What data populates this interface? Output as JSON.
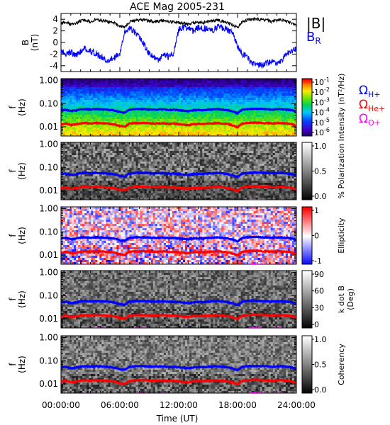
{
  "title": "ACE Mag 2005-231",
  "xaxis": {
    "label": "Time (UT)",
    "range_hours": [
      0,
      24
    ],
    "ticks": [
      {
        "value": 0,
        "label": "00:00:00"
      },
      {
        "value": 6,
        "label": "06:00:00"
      },
      {
        "value": 12,
        "label": "12:00:00"
      },
      {
        "value": 18,
        "label": "18:00:00"
      },
      {
        "value": 24,
        "label": "24:00:00"
      }
    ]
  },
  "colors": {
    "H": "#0000ff",
    "He": "#ff0000",
    "O": "#ff00ff",
    "B_total": "#000000",
    "B_R": "#0000ff"
  },
  "chart_data": [
    {
      "type": "line",
      "ylabel": [
        "B",
        "(nT)"
      ],
      "ylim": [
        -5,
        5
      ],
      "yticks": [
        {
          "value": 4,
          "label": "4"
        },
        {
          "value": 2,
          "label": "2"
        },
        {
          "value": 0,
          "label": "0"
        },
        {
          "value": -2,
          "label": "-2"
        },
        {
          "value": -4,
          "label": "-4"
        }
      ],
      "legend": [
        {
          "name": "|B|",
          "color": "#000000"
        },
        {
          "name": "B",
          "sub": "R",
          "color": "#0000ff"
        }
      ],
      "series": [
        {
          "name": "|B|",
          "color": "#000000",
          "x": [
            0,
            0.5,
            1,
            1.5,
            2,
            2.5,
            3,
            3.5,
            4,
            4.5,
            5,
            5.5,
            6,
            6.5,
            7,
            7.5,
            8,
            8.5,
            9,
            9.5,
            10,
            10.5,
            11,
            11.5,
            12,
            12.5,
            13,
            13.5,
            14,
            14.5,
            15,
            15.5,
            16,
            16.5,
            17,
            17.5,
            18,
            18.5,
            19,
            19.5,
            20,
            20.5,
            21,
            21.5,
            22,
            22.5,
            23,
            23.5,
            24
          ],
          "y": [
            3.2,
            3.6,
            3.1,
            3.3,
            3.7,
            3.9,
            3.6,
            3.9,
            3.8,
            3.7,
            3.5,
            3.3,
            2.8,
            2.6,
            3.6,
            3.8,
            3.9,
            3.9,
            3.7,
            3.6,
            3.7,
            3.8,
            3.5,
            3.6,
            3.4,
            3.3,
            3.1,
            3.4,
            3.5,
            3.4,
            3.6,
            3.7,
            3.9,
            3.6,
            3.4,
            3.0,
            2.5,
            3.6,
            3.9,
            4.0,
            4.0,
            3.9,
            3.9,
            3.6,
            3.8,
            3.9,
            3.6,
            3.4,
            2.8
          ]
        },
        {
          "name": "B_R",
          "color": "#0000ff",
          "x": [
            0,
            0.5,
            1,
            1.5,
            2,
            2.5,
            3,
            3.5,
            4,
            4.5,
            5,
            5.5,
            6,
            6.5,
            7,
            7.5,
            8,
            8.5,
            9,
            9.5,
            10,
            10.5,
            11,
            11.5,
            12,
            12.5,
            13,
            13.5,
            14,
            14.5,
            15,
            15.5,
            16,
            16.5,
            17,
            17.5,
            18,
            18.5,
            19,
            19.5,
            20,
            20.5,
            21,
            21.5,
            22,
            22.5,
            23,
            23.5,
            24
          ],
          "y": [
            -1.5,
            -2.0,
            -1.6,
            -2.2,
            -1.5,
            -1.0,
            -1.5,
            -1.8,
            -2.4,
            -3.0,
            -3.0,
            -2.5,
            -2.0,
            2.0,
            2.5,
            1.8,
            1.0,
            -0.4,
            -2.0,
            -2.6,
            -3.0,
            -2.0,
            -2.5,
            -1.8,
            2.2,
            2.6,
            2.4,
            2.0,
            2.6,
            2.3,
            2.5,
            2.1,
            2.8,
            2.5,
            2.2,
            1.6,
            -0.5,
            -2.0,
            -2.5,
            -3.6,
            -3.9,
            -4.0,
            -3.6,
            -3.2,
            -3.6,
            -3.0,
            -2.0,
            -1.5,
            -1.0
          ]
        }
      ]
    },
    {
      "type": "heatmap",
      "ylabel": [
        "f",
        "(Hz)"
      ],
      "ylim": [
        0.004,
        1.2
      ],
      "yscale": "log",
      "yticks": [
        {
          "value": 1,
          "label": "1.00"
        },
        {
          "value": 0.1,
          "label": "0.10"
        },
        {
          "value": 0.01,
          "label": "0.01"
        }
      ],
      "colorbar": {
        "label": "Intensity (nT²/Hz)",
        "colormap": "rainbow",
        "ticks": [
          {
            "label": "10",
            "exp": "-1"
          },
          {
            "label": "10",
            "exp": "-2"
          },
          {
            "label": "10",
            "exp": "-3"
          },
          {
            "label": "10",
            "exp": "-4"
          },
          {
            "label": "10",
            "exp": "-5"
          },
          {
            "label": "10",
            "exp": "-6"
          }
        ]
      },
      "legend": [
        {
          "name": "Ω",
          "sub": "H+",
          "color": "#0000ff"
        },
        {
          "name": "Ω",
          "sub": "He+",
          "color": "#ff0000"
        },
        {
          "name": "Ω",
          "sub": "O+",
          "color": "#ff00ff"
        }
      ]
    },
    {
      "type": "heatmap",
      "ylabel": [
        "f",
        "(Hz)"
      ],
      "ylim": [
        0.004,
        1.2
      ],
      "yscale": "log",
      "yticks": [
        {
          "value": 1,
          "label": "1.00"
        },
        {
          "value": 0.1,
          "label": "0.10"
        },
        {
          "value": 0.01,
          "label": "0.01"
        }
      ],
      "colorbar": {
        "label": "% Polarization",
        "colormap": "gray",
        "ticks": [
          {
            "label": "1.0"
          },
          {
            "label": "0.5"
          },
          {
            "label": "0.0"
          }
        ]
      }
    },
    {
      "type": "heatmap",
      "ylabel": [
        "f",
        "(Hz)"
      ],
      "ylim": [
        0.004,
        1.2
      ],
      "yscale": "log",
      "yticks": [
        {
          "value": 1,
          "label": "1.00"
        },
        {
          "value": 0.1,
          "label": "0.10"
        },
        {
          "value": 0.01,
          "label": "0.01"
        }
      ],
      "colorbar": {
        "label": "Ellipticity",
        "colormap": "bwr",
        "ticks": [
          {
            "label": "1"
          },
          {
            "label": "0"
          },
          {
            "label": "-1"
          }
        ]
      }
    },
    {
      "type": "heatmap",
      "ylabel": [
        "f",
        "(Hz)"
      ],
      "ylim": [
        0.004,
        1.2
      ],
      "yscale": "log",
      "yticks": [
        {
          "value": 1,
          "label": "1.00"
        },
        {
          "value": 0.1,
          "label": "0.10"
        },
        {
          "value": 0.01,
          "label": "0.01"
        }
      ],
      "colorbar": {
        "label": "k dot B",
        "label2": "(Deg)",
        "colormap": "gray",
        "ticks": [
          {
            "label": "90"
          },
          {
            "label": "60"
          },
          {
            "label": "30"
          },
          {
            "label": "0"
          }
        ]
      }
    },
    {
      "type": "heatmap",
      "ylabel": [
        "f",
        "(Hz)"
      ],
      "ylim": [
        0.004,
        1.2
      ],
      "yscale": "log",
      "yticks": [
        {
          "value": 1,
          "label": "1.00"
        },
        {
          "value": 0.1,
          "label": "0.10"
        },
        {
          "value": 0.01,
          "label": "0.01"
        }
      ],
      "colorbar": {
        "label": "Coherency",
        "colormap": "gray",
        "ticks": [
          {
            "label": "1.0"
          },
          {
            "label": "0.5"
          },
          {
            "label": "0.0"
          }
        ]
      }
    }
  ],
  "gyrofrequency": {
    "x": [
      0,
      0.5,
      1,
      1.5,
      2,
      2.5,
      3,
      3.5,
      4,
      4.5,
      5,
      5.5,
      6,
      6.5,
      7,
      7.5,
      8,
      8.5,
      9,
      9.5,
      10,
      10.5,
      11,
      11.5,
      12,
      12.5,
      13,
      13.5,
      14,
      14.5,
      15,
      15.5,
      16,
      16.5,
      17,
      17.5,
      18,
      18.5,
      19,
      19.5,
      20,
      20.5,
      21,
      21.5,
      22,
      22.5,
      23,
      23.5,
      24
    ],
    "H": [
      0.05,
      0.055,
      0.048,
      0.05,
      0.056,
      0.058,
      0.055,
      0.058,
      0.057,
      0.056,
      0.053,
      0.05,
      0.043,
      0.04,
      0.055,
      0.057,
      0.058,
      0.058,
      0.056,
      0.055,
      0.056,
      0.057,
      0.053,
      0.055,
      0.052,
      0.05,
      0.047,
      0.052,
      0.053,
      0.052,
      0.055,
      0.056,
      0.058,
      0.055,
      0.052,
      0.046,
      0.038,
      0.055,
      0.058,
      0.06,
      0.06,
      0.058,
      0.058,
      0.055,
      0.057,
      0.058,
      0.055,
      0.052,
      0.043
    ],
    "He": [
      0.0125,
      0.0138,
      0.012,
      0.0125,
      0.014,
      0.0145,
      0.0138,
      0.0145,
      0.0143,
      0.014,
      0.0133,
      0.0125,
      0.0108,
      0.01,
      0.0138,
      0.0143,
      0.0145,
      0.0145,
      0.014,
      0.0138,
      0.014,
      0.0143,
      0.0133,
      0.0138,
      0.013,
      0.0125,
      0.0118,
      0.013,
      0.0133,
      0.013,
      0.0138,
      0.014,
      0.0145,
      0.0138,
      0.013,
      0.0115,
      0.0095,
      0.0138,
      0.0145,
      0.015,
      0.015,
      0.0145,
      0.0145,
      0.0138,
      0.0143,
      0.0145,
      0.0138,
      0.013,
      0.0108
    ],
    "O": [
      0.0031,
      0.0034,
      0.003,
      0.0031,
      0.0035,
      0.0036,
      0.0034,
      0.0036,
      0.0036,
      0.0035,
      0.0033,
      0.0031,
      0.0027,
      0.0025,
      0.0034,
      0.0036,
      0.0036,
      0.0036,
      0.0035,
      0.0034,
      0.0035,
      0.0036,
      0.0033,
      0.0034,
      0.0033,
      0.0031,
      0.003,
      0.0033,
      0.0033,
      0.0033,
      0.0034,
      0.0035,
      0.0036,
      0.0034,
      0.0033,
      0.0029,
      0.0024,
      0.0034,
      0.0036,
      0.0038,
      0.0038,
      0.0036,
      0.0036,
      0.0034,
      0.0036,
      0.0036,
      0.0034,
      0.0033,
      0.0027
    ]
  }
}
